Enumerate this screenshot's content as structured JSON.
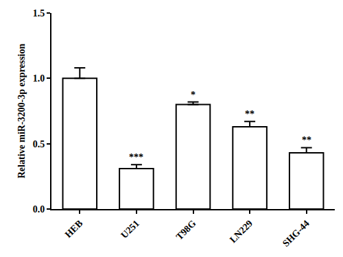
{
  "chart_data": {
    "type": "bar",
    "y_label": "Relative miR-3200-3p expression",
    "categories": [
      "HEB",
      "U251",
      "T98G",
      "LN229",
      "SHG-44"
    ],
    "values": [
      1.0,
      0.31,
      0.8,
      0.63,
      0.43
    ],
    "errors": [
      0.08,
      0.03,
      0.02,
      0.04,
      0.04
    ],
    "color": "#ffffff",
    "ylim": [
      0,
      1.5
    ],
    "yticks": [
      {
        "value": 0,
        "label": "0.0"
      },
      {
        "value": 0.5,
        "label": "0.5"
      },
      {
        "value": 1.0,
        "label": "1.0"
      },
      {
        "value": 1.5,
        "label": "1.5"
      }
    ],
    "grid": false,
    "annotations": [
      {
        "category": "U251",
        "text": "***"
      },
      {
        "category": "T98G",
        "text": "*"
      },
      {
        "category": "LN229",
        "text": "**"
      },
      {
        "category": "SHG-44",
        "text": "**"
      }
    ]
  }
}
